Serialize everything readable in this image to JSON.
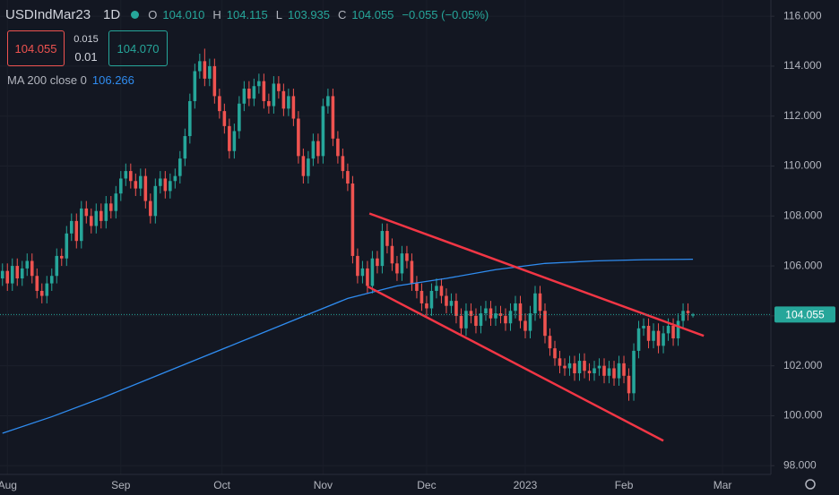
{
  "chart_data": {
    "type": "candlestick",
    "title": "USDIndMar23",
    "interval": "1D",
    "ohlc_labels": [
      "O",
      "H",
      "L",
      "C"
    ],
    "ohlc_values": [
      "104.010",
      "104.115",
      "103.935",
      "104.055"
    ],
    "change": "−0.055 (−0.05%)",
    "sell_price": "104.055",
    "spread_top": "0.015",
    "spread_bottom": "0.01",
    "buy_price": "104.070",
    "last_price_label": "104.055",
    "up_color": "#26a69a",
    "down_color": "#ef5350",
    "open": [
      105.5,
      105.8,
      105.3,
      106.0,
      105.5,
      105.9,
      106.2,
      105.6,
      105.0,
      104.8,
      105.3,
      105.6,
      106.4,
      106.3,
      107.3,
      107.8,
      107.0,
      108.3,
      108.0,
      107.6,
      108.2,
      107.8,
      108.5,
      108.2,
      108.9,
      109.5,
      109.8,
      109.4,
      109.1,
      109.6,
      108.6,
      108.0,
      109.2,
      109.5,
      109.0,
      109.4,
      109.6,
      110.3,
      111.2,
      112.6,
      113.8,
      114.2,
      113.5,
      114.0,
      112.8,
      112.2,
      111.6,
      110.6,
      111.4,
      112.5,
      113.1,
      112.7,
      113.2,
      113.4,
      112.6,
      112.4,
      113.3,
      113.0,
      112.3,
      112.8,
      111.9,
      110.4,
      109.6,
      110.3,
      111.0,
      110.4,
      112.4,
      112.8,
      111.1,
      110.4,
      109.8,
      109.3,
      106.4,
      105.6,
      105.9,
      105.2,
      106.3,
      106.0,
      107.4,
      106.8,
      106.1,
      105.7,
      106.5,
      106.2,
      105.3,
      105.0,
      104.5,
      104.3,
      105.0,
      105.2,
      104.8,
      104.4,
      104.6,
      104.0,
      103.5,
      104.2,
      104.0,
      103.6,
      104.1,
      104.3,
      103.9,
      104.1,
      104.0,
      103.7,
      104.2,
      104.5,
      103.8,
      103.4,
      104.1,
      104.9,
      104.2,
      103.2,
      102.7,
      102.3,
      102.0,
      101.9,
      102.1,
      101.7,
      102.2,
      101.8,
      101.7,
      101.9,
      102.0,
      101.6,
      101.9,
      101.5,
      102.1,
      101.6,
      100.9,
      102.6,
      103.5,
      103.6,
      103.0,
      103.4,
      102.8,
      103.3,
      103.6,
      103.1,
      103.8,
      104.2,
      104.01
    ],
    "high": [
      106.1,
      106.1,
      106.3,
      106.3,
      106.2,
      106.5,
      106.5,
      105.9,
      105.3,
      105.6,
      105.9,
      106.7,
      106.7,
      107.6,
      108.1,
      108.1,
      108.6,
      108.6,
      108.3,
      108.5,
      108.5,
      108.8,
      108.8,
      109.2,
      109.8,
      110.1,
      110.1,
      109.7,
      109.9,
      109.9,
      108.9,
      109.5,
      109.8,
      109.8,
      109.7,
      109.9,
      110.6,
      111.5,
      112.9,
      114.1,
      114.5,
      114.7,
      114.3,
      114.3,
      113.1,
      112.5,
      111.9,
      111.7,
      112.8,
      113.4,
      113.4,
      113.5,
      113.7,
      113.7,
      112.9,
      113.6,
      113.6,
      113.3,
      113.1,
      113.1,
      112.2,
      110.7,
      110.6,
      111.3,
      111.3,
      112.7,
      113.1,
      113.1,
      111.4,
      110.7,
      110.1,
      109.6,
      106.7,
      106.2,
      106.2,
      106.6,
      106.6,
      107.7,
      107.7,
      107.1,
      106.4,
      106.8,
      106.8,
      106.5,
      105.6,
      105.3,
      104.8,
      105.3,
      105.5,
      105.5,
      105.1,
      104.9,
      104.9,
      104.3,
      104.5,
      104.5,
      104.3,
      104.4,
      104.6,
      104.6,
      104.4,
      104.4,
      104.3,
      104.5,
      104.8,
      104.8,
      104.1,
      104.4,
      105.2,
      105.2,
      104.5,
      103.5,
      103.0,
      102.6,
      102.3,
      102.4,
      102.4,
      102.5,
      102.5,
      102.1,
      102.2,
      102.3,
      102.3,
      102.2,
      102.2,
      102.4,
      102.4,
      101.9,
      102.9,
      103.8,
      103.9,
      103.9,
      103.7,
      103.7,
      103.6,
      103.9,
      103.9,
      104.1,
      104.5,
      104.5,
      104.115
    ],
    "low": [
      105.2,
      105.0,
      105.0,
      105.2,
      105.2,
      105.6,
      105.3,
      104.7,
      104.5,
      104.5,
      105.0,
      105.3,
      106.0,
      106.0,
      107.0,
      106.7,
      106.7,
      107.7,
      107.3,
      107.3,
      107.5,
      107.5,
      107.9,
      107.9,
      108.6,
      109.2,
      109.1,
      108.8,
      108.8,
      108.3,
      107.7,
      107.7,
      108.9,
      108.7,
      108.7,
      109.1,
      109.3,
      110.0,
      110.9,
      112.3,
      113.5,
      113.2,
      113.2,
      112.5,
      111.9,
      111.3,
      110.3,
      110.3,
      111.1,
      112.2,
      112.4,
      112.4,
      112.9,
      112.3,
      112.1,
      112.1,
      112.7,
      112.0,
      112.0,
      111.6,
      110.1,
      109.3,
      109.3,
      110.0,
      110.1,
      110.1,
      112.1,
      110.8,
      110.1,
      109.5,
      109.0,
      106.1,
      105.3,
      105.3,
      104.9,
      104.9,
      105.7,
      105.7,
      106.5,
      105.8,
      105.4,
      105.4,
      105.9,
      105.0,
      104.7,
      104.2,
      104.0,
      104.0,
      104.7,
      104.5,
      104.1,
      104.1,
      103.7,
      103.2,
      103.2,
      103.7,
      103.3,
      103.3,
      103.8,
      103.6,
      103.6,
      103.7,
      103.4,
      103.4,
      103.9,
      103.5,
      103.1,
      103.1,
      103.8,
      103.9,
      102.9,
      102.4,
      102.0,
      101.7,
      101.6,
      101.6,
      101.4,
      101.4,
      101.5,
      101.4,
      101.4,
      101.6,
      101.3,
      101.3,
      101.2,
      101.2,
      101.3,
      100.6,
      100.6,
      102.3,
      103.2,
      102.7,
      102.7,
      102.5,
      102.5,
      103.0,
      102.8,
      102.8,
      103.5,
      103.81,
      103.935
    ],
    "close": [
      105.8,
      105.3,
      106.0,
      105.5,
      105.9,
      106.2,
      105.6,
      105.0,
      104.8,
      105.3,
      105.6,
      106.4,
      106.3,
      107.3,
      107.8,
      107.0,
      108.3,
      108.0,
      107.6,
      108.2,
      107.8,
      108.5,
      108.2,
      108.9,
      109.5,
      109.8,
      109.4,
      109.1,
      109.6,
      108.6,
      108.0,
      109.2,
      109.5,
      109.0,
      109.4,
      109.6,
      110.3,
      111.2,
      112.6,
      113.8,
      114.2,
      113.5,
      114.0,
      112.8,
      112.2,
      111.6,
      110.6,
      111.4,
      112.5,
      113.1,
      112.7,
      113.2,
      113.4,
      112.6,
      112.4,
      113.3,
      113.0,
      112.3,
      112.8,
      111.9,
      110.4,
      109.6,
      110.3,
      111.0,
      110.4,
      112.4,
      112.8,
      111.1,
      110.4,
      109.8,
      109.3,
      106.4,
      105.6,
      105.9,
      105.2,
      106.3,
      106.0,
      107.4,
      106.8,
      106.1,
      105.7,
      106.5,
      106.2,
      105.3,
      105.0,
      104.5,
      104.3,
      105.0,
      105.2,
      104.8,
      104.4,
      104.6,
      104.0,
      103.5,
      104.2,
      104.0,
      103.6,
      104.1,
      104.3,
      103.9,
      104.1,
      104.0,
      103.7,
      104.2,
      104.5,
      103.8,
      103.4,
      104.1,
      104.9,
      104.2,
      103.2,
      102.7,
      102.3,
      102.0,
      101.9,
      102.1,
      101.7,
      102.2,
      101.8,
      101.7,
      101.9,
      102.0,
      101.6,
      101.9,
      101.5,
      102.1,
      101.6,
      100.9,
      102.6,
      103.5,
      103.6,
      103.0,
      103.4,
      102.8,
      103.3,
      103.6,
      103.1,
      103.8,
      104.2,
      104.11,
      104.055
    ],
    "ma": {
      "name": "MA 200 close 0",
      "value_label": "106.266",
      "color": "#2f8cf0",
      "x": [
        0,
        10,
        20,
        30,
        40,
        50,
        60,
        70,
        80,
        90,
        100,
        110,
        120,
        130,
        140
      ],
      "values": [
        99.3,
        99.96,
        100.7,
        101.5,
        102.3,
        103.1,
        103.9,
        104.7,
        105.2,
        105.5,
        105.85,
        106.1,
        106.2,
        106.25,
        106.266
      ]
    },
    "trendlines": [
      {
        "color": "#f23645",
        "x": [
          74.4,
          142.2
        ],
        "y": [
          108.1,
          103.2
        ]
      },
      {
        "color": "#f23645",
        "x": [
          74.0,
          134.0
        ],
        "y": [
          105.18,
          99.0
        ]
      }
    ],
    "xlim": [
      -0.5,
      155.8
    ],
    "ylim": [
      97.65,
      116.65
    ],
    "grid": true,
    "xticks": [
      {
        "value": 1,
        "label": "Aug"
      },
      {
        "value": 24,
        "label": "Sep"
      },
      {
        "value": 44.5,
        "label": "Oct"
      },
      {
        "value": 65,
        "label": "Nov"
      },
      {
        "value": 86,
        "label": "Dec"
      },
      {
        "value": 106,
        "label": "2023"
      },
      {
        "value": 126,
        "label": "Feb"
      },
      {
        "value": 146,
        "label": "Mar"
      }
    ],
    "yticks": [
      {
        "value": 98,
        "label": "98.000"
      },
      {
        "value": 100,
        "label": "100.000"
      },
      {
        "value": 102,
        "label": "102.000"
      },
      {
        "value": 104,
        "label": "104.000"
      },
      {
        "value": 106,
        "label": "106.000"
      },
      {
        "value": 108,
        "label": "108.000"
      },
      {
        "value": 110,
        "label": "110.000"
      },
      {
        "value": 112,
        "label": "112.000"
      },
      {
        "value": 114,
        "label": "114.000"
      },
      {
        "value": 116,
        "label": "116.000"
      }
    ]
  }
}
